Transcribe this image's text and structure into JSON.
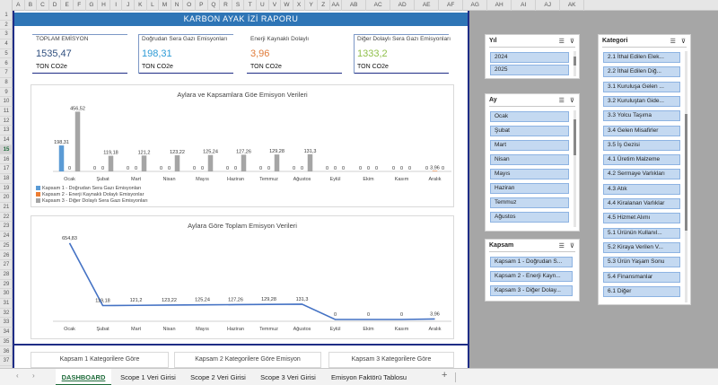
{
  "columns": [
    "A",
    "B",
    "C",
    "D",
    "E",
    "F",
    "G",
    "H",
    "I",
    "J",
    "K",
    "L",
    "M",
    "N",
    "O",
    "P",
    "Q",
    "R",
    "S",
    "T",
    "U",
    "V",
    "W",
    "X",
    "Y",
    "Z",
    "AA",
    "AB",
    "AC",
    "AD",
    "AE",
    "AF",
    "AG",
    "AH",
    "AI",
    "AJ",
    "AK"
  ],
  "rows": [
    "1",
    "2",
    "3",
    "4",
    "5",
    "6",
    "7",
    "8",
    "9",
    "10",
    "11",
    "12",
    "13",
    "14",
    "15",
    "16",
    "17",
    "18",
    "19",
    "20",
    "21",
    "22",
    "23",
    "24",
    "25",
    "26",
    "27",
    "28",
    "29",
    "30",
    "31",
    "32",
    "33",
    "34",
    "35",
    "36",
    "37"
  ],
  "selected_row": "15",
  "report_title": "KARBON AYAK İZİ RAPORU",
  "kpis": [
    {
      "label": "TOPLAM EMİSYON",
      "value": "1535,47",
      "unit": "TON CO2e",
      "color": "#2f4f7f"
    },
    {
      "label": "Doğrudan Sera Gazı Emisyonları",
      "value": "198,31",
      "unit": "TON CO2e",
      "color": "#2e9bd6"
    },
    {
      "label": "Enerji Kaynaklı Dolaylı",
      "value": "3,96",
      "unit": "TON CO2e",
      "color": "#e07b39"
    },
    {
      "label": "Diğer Dolaylı Sera Gazı Emisyonları",
      "value": "1333,2",
      "unit": "TON CO2e",
      "color": "#8fbf4a"
    }
  ],
  "chart_data": [
    {
      "type": "bar",
      "title": "Aylara ve Kapsamlara Göe Emisyon Verileri",
      "categories": [
        "Ocak",
        "Şubat",
        "Mart",
        "Nisan",
        "Mayıs",
        "Haziran",
        "Temmuz",
        "Ağustos",
        "Eylül",
        "Ekim",
        "Kasım",
        "Aralık"
      ],
      "series": [
        {
          "name": "Kapsam 1 - Doğrudan Sera Gazı Emisyonları",
          "color": "#5b9bd5",
          "values": [
            198.31,
            0,
            0,
            0,
            0,
            0,
            0,
            0,
            0,
            0,
            0,
            0
          ],
          "labels": [
            "198,31",
            "0",
            "0",
            "0",
            "0",
            "0",
            "0",
            "0",
            "0",
            "0",
            "0",
            "0"
          ]
        },
        {
          "name": "Kapsam 2 - Enerji Kaynaklı Dolaylı Emisyonlar",
          "color": "#ed7d31",
          "values": [
            0,
            0,
            0,
            0,
            0,
            0,
            0,
            0,
            0,
            0,
            0,
            3.96
          ],
          "labels": [
            "0",
            "0",
            "0",
            "0",
            "0",
            "0",
            "0",
            "0",
            "0",
            "0",
            "0",
            "3,96"
          ]
        },
        {
          "name": "Kapsam 3 - Diğer Dolaylı Sera Gazı Emisyonları",
          "color": "#a5a5a5",
          "values": [
            456.52,
            119.18,
            121.2,
            123.22,
            125.24,
            127.26,
            129.28,
            131.3,
            0,
            0,
            0,
            0
          ],
          "labels": [
            "456,52",
            "119,18",
            "121,2",
            "123,22",
            "125,24",
            "127,26",
            "129,28",
            "131,3",
            "0",
            "0",
            "0",
            "0"
          ]
        }
      ],
      "ylim": [
        0,
        480
      ],
      "legend": "bottom-left"
    },
    {
      "type": "line",
      "title": "Aylara Göre Toplam Emisyon Verileri",
      "categories": [
        "Ocak",
        "Şubat",
        "Mart",
        "Nisan",
        "Mayıs",
        "Haziran",
        "Temmuz",
        "Ağustos",
        "Eylül",
        "Ekim",
        "Kasım",
        "Aralık"
      ],
      "values": [
        654.83,
        119.18,
        121.2,
        123.22,
        125.24,
        127.26,
        129.28,
        131.3,
        0,
        0,
        0,
        3.96
      ],
      "labels": [
        "654,83",
        "119,18",
        "121,2",
        "123,22",
        "125,24",
        "127,26",
        "129,28",
        "131,3",
        "0",
        "0",
        "0",
        "3,96"
      ],
      "color": "#4472c4",
      "ylim": [
        0,
        700
      ]
    }
  ],
  "bottom_cards": [
    "Kapsam 1 Kategorilere Göre",
    "Kapsam 2 Kategorilere Göre Emisyon",
    "Kapsam 3 Kategorilere Göre"
  ],
  "slicers": {
    "yil": {
      "title": "Yıl",
      "items": [
        "2024",
        "2025"
      ]
    },
    "ay": {
      "title": "Ay",
      "items": [
        "Ocak",
        "Şubat",
        "Mart",
        "Nisan",
        "Mayıs",
        "Haziran",
        "Temmuz",
        "Ağustos"
      ]
    },
    "kapsam": {
      "title": "Kapsam",
      "items": [
        "Kapsam 1 - Doğrudan S...",
        "Kapsam 2 - Enerji Kayn...",
        "Kapsam 3 - Diğer Dolay..."
      ]
    },
    "kategori": {
      "title": "Kategori",
      "items": [
        "2.1 İthal Edilen Elek...",
        "2.2 İthal Edilen Diğ...",
        "3.1 Kuruluşa Gelen ...",
        "3.2 Kuruluştan Gide...",
        "3.3 Yolcu Taşıma",
        "3.4 Gelen Misafirler",
        "3.5 İş Gezisi",
        "4.1 Üretim Malzeme",
        "4.2 Sermaye Varlıkları",
        "4.3 Atık",
        "4.4 Kiralanan Varlıklar",
        "4.5 Hizmet Alımı",
        "5.1 Ürünün Kullanıl...",
        "5.2 Kiraya Verilen V...",
        "5.3 Ürün Yaşam Sonu",
        "5.4 Finansmanlar",
        "6.1 Diğer"
      ]
    }
  },
  "tabs": [
    "DASHBOARD",
    "Scope 1 Veri Girisi",
    "Scope 2 Veri Girisi",
    "Scope 3 Veri Girisi",
    "Emisyon Faktörü Tablosu"
  ],
  "tab_nav": {
    "prev": "‹",
    "next": "›",
    "add": "+"
  }
}
